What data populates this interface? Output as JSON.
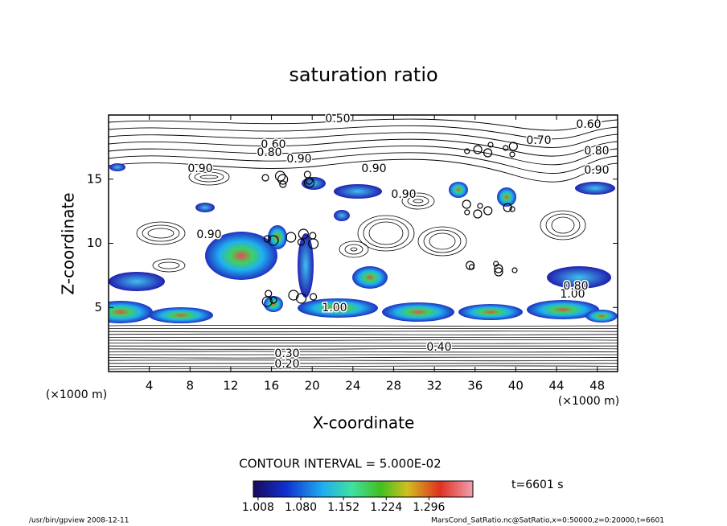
{
  "chart_data": {
    "type": "contour",
    "title": "saturation ratio",
    "xlabel": "X-coordinate",
    "ylabel": "Z-coordinate",
    "x_unit_label": "(×1000 m)",
    "y_unit_label": "(×1000 m)",
    "xlim": [
      0,
      50
    ],
    "ylim": [
      0,
      20
    ],
    "xticks": [
      4,
      8,
      12,
      16,
      20,
      24,
      28,
      32,
      36,
      40,
      44,
      48
    ],
    "yticks": [
      5,
      10,
      15
    ],
    "contour_labels": [
      "0.50",
      "0.60",
      "0.70",
      "0.80",
      "0.90",
      "0.60",
      "0.80",
      "0.90",
      "0.90",
      "0.90",
      "0.90",
      "0.90",
      "1.00",
      "1.00",
      "0.80",
      "0.40",
      "0.30",
      "0.20"
    ],
    "contour_interval_label": "CONTOUR INTERVAL = 5.000E-02",
    "colorbar": {
      "clim": [
        1.0,
        1.37
      ],
      "ticks": [
        1.008,
        {
          "value": 1.08,
          "label": "1.080"
        },
        1.152,
        1.224,
        1.296
      ]
    },
    "time_label": "t=6601 s",
    "footer_left": "/usr/bin/gpview  2008-12-11",
    "footer_right": "MarsCond_SatRatio.nc@SatRatio,x=0:50000,z=0:20000,t=6601"
  }
}
